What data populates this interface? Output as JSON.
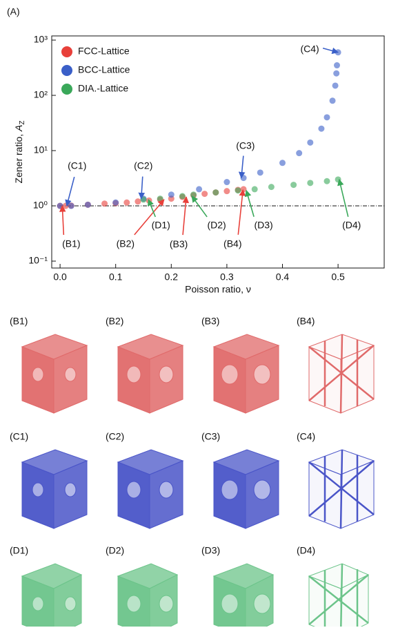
{
  "chart_data": {
    "type": "scatter",
    "label": "(A)",
    "x_label": "Poisson ratio, ν",
    "y_label": {
      "text": "Zener ratio, ",
      "symbol": "A",
      "subscript": "Z"
    },
    "log_y": true,
    "legend": "upper-left",
    "xlim": [
      -0.015,
      0.583
    ],
    "ylim": [
      0.075,
      1190
    ],
    "xticks": [
      {
        "value": 0,
        "label": "0.0"
      },
      0.1,
      0.2,
      0.3,
      0.4,
      0.5
    ],
    "yticks": [
      {
        "value": 0.1,
        "label": "10⁻¹"
      },
      {
        "value": 1,
        "label": "10⁰"
      },
      {
        "value": 10,
        "label": "10¹"
      },
      {
        "value": 100,
        "label": "10²"
      },
      {
        "value": 1000,
        "label": "10³"
      }
    ],
    "reference_line": 1,
    "series": [
      {
        "name": "FCC-Lattice",
        "color": "#e8403a",
        "x": [
          0.0,
          0.01,
          0.02,
          0.05,
          0.08,
          0.1,
          0.12,
          0.14,
          0.16,
          0.18,
          0.2,
          0.22,
          0.24,
          0.26,
          0.28,
          0.3,
          0.32,
          0.33
        ],
        "values": [
          1.0,
          1.0,
          1.01,
          1.05,
          1.1,
          1.12,
          1.15,
          1.2,
          1.25,
          1.3,
          1.35,
          1.45,
          1.55,
          1.65,
          1.75,
          1.85,
          1.95,
          2.0
        ]
      },
      {
        "name": "BCC-Lattice",
        "color": "#3a5fc8",
        "x": [
          0.0,
          0.02,
          0.05,
          0.1,
          0.15,
          0.2,
          0.25,
          0.3,
          0.33,
          0.36,
          0.4,
          0.43,
          0.45,
          0.47,
          0.48,
          0.49,
          0.495,
          0.497,
          0.498,
          0.5
        ],
        "values": [
          1.0,
          1.0,
          1.05,
          1.15,
          1.35,
          1.6,
          2.0,
          2.7,
          3.2,
          4,
          6,
          9,
          14,
          25,
          40,
          80,
          150,
          250,
          350,
          600
        ]
      },
      {
        "name": "DIA.-Lattice",
        "color": "#3aa85a",
        "x": [
          0.15,
          0.18,
          0.22,
          0.24,
          0.28,
          0.32,
          0.35,
          0.38,
          0.42,
          0.45,
          0.48,
          0.5
        ],
        "values": [
          1.3,
          1.35,
          1.5,
          1.6,
          1.75,
          1.9,
          2.0,
          2.2,
          2.4,
          2.6,
          2.8,
          3.0
        ]
      }
    ],
    "annotations": [
      {
        "text": "(C1)",
        "x": 0.012,
        "y": 1.0,
        "color": "#3a5fc8"
      },
      {
        "text": "(C2)",
        "x": 0.146,
        "y": 1.35,
        "color": "#3a5fc8"
      },
      {
        "text": "(C3)",
        "x": 0.326,
        "y": 3.2,
        "color": "#3a5fc8"
      },
      {
        "text": "(C4)",
        "x": 0.5,
        "y": 600,
        "color": "#3a5fc8"
      },
      {
        "text": "(B1)",
        "x": 0.004,
        "y": 1.0,
        "color": "#e8403a"
      },
      {
        "text": "(B2)",
        "x": 0.187,
        "y": 1.3,
        "color": "#e8403a"
      },
      {
        "text": "(B3)",
        "x": 0.227,
        "y": 1.45,
        "color": "#e8403a"
      },
      {
        "text": "(B4)",
        "x": 0.329,
        "y": 1.95,
        "color": "#e8403a"
      },
      {
        "text": "(D1)",
        "x": 0.159,
        "y": 1.3,
        "color": "#3aa85a"
      },
      {
        "text": "(D2)",
        "x": 0.237,
        "y": 1.5,
        "color": "#3aa85a"
      },
      {
        "text": "(D3)",
        "x": 0.335,
        "y": 1.9,
        "color": "#3aa85a"
      },
      {
        "text": "(D4)",
        "x": 0.502,
        "y": 3.0,
        "color": "#3aa85a"
      }
    ]
  },
  "panels": [
    {
      "color": "#e06a6a",
      "labels": [
        "(B1)",
        "(B2)",
        "(B3)",
        "(B4)"
      ]
    },
    {
      "color": "#4a55c8",
      "labels": [
        "(C1)",
        "(C2)",
        "(C3)",
        "(C4)"
      ]
    },
    {
      "color": "#6cc48a",
      "labels": [
        "(D1)",
        "(D2)",
        "(D3)",
        "(D4)"
      ]
    }
  ]
}
